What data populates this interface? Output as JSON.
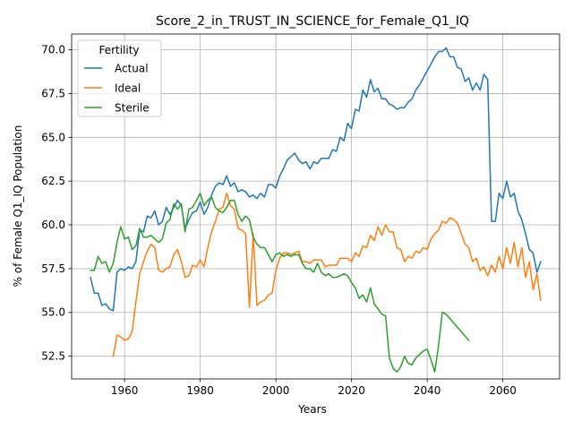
{
  "chart_data": {
    "type": "line",
    "title": "Score_2_in_TRUST_IN_SCIENCE_for_Female_Q1_IQ",
    "xlabel": "Years",
    "ylabel": "% of Female Q1_IQ Population",
    "xlim": [
      1946,
      2075
    ],
    "ylim": [
      51.2,
      70.9
    ],
    "xticks": [
      1960,
      1980,
      2000,
      2020,
      2040,
      2060
    ],
    "yticks": [
      52.5,
      55.0,
      57.5,
      60.0,
      62.5,
      65.0,
      67.5,
      70.0
    ],
    "xtick_labels": [
      "1960",
      "1980",
      "2000",
      "2020",
      "2040",
      "2060"
    ],
    "ytick_labels": [
      "52.5",
      "55.0",
      "57.5",
      "60.0",
      "62.5",
      "65.0",
      "67.5",
      "70.0"
    ],
    "grid": true,
    "legend": {
      "title": "Fertility",
      "placement": "top-left"
    },
    "series": [
      {
        "name": "Actual",
        "color": "#1f77b4",
        "x": [
          1951,
          1952,
          1953,
          1954,
          1955,
          1956,
          1957,
          1958,
          1959,
          1960,
          1961,
          1962,
          1963,
          1964,
          1965,
          1966,
          1967,
          1968,
          1969,
          1970,
          1971,
          1972,
          1973,
          1974,
          1975,
          1976,
          1977,
          1978,
          1979,
          1980,
          1981,
          1982,
          1983,
          1984,
          1985,
          1986,
          1987,
          1988,
          1989,
          1990,
          1991,
          1992,
          1993,
          1994,
          1995,
          1996,
          1997,
          1998,
          1999,
          2000,
          2001,
          2002,
          2003,
          2004,
          2005,
          2006,
          2007,
          2008,
          2009,
          2010,
          2011,
          2012,
          2013,
          2014,
          2015,
          2016,
          2017,
          2018,
          2019,
          2020,
          2021,
          2022,
          2023,
          2024,
          2025,
          2026,
          2027,
          2028,
          2029,
          2030,
          2031,
          2032,
          2033,
          2034,
          2035,
          2036,
          2037,
          2038,
          2039,
          2040,
          2041,
          2042,
          2043,
          2044,
          2045,
          2046,
          2047,
          2048,
          2049,
          2050,
          2051,
          2052,
          2053,
          2054,
          2055,
          2056,
          2057,
          2058,
          2059,
          2060,
          2061,
          2062,
          2063,
          2064,
          2065,
          2066,
          2067,
          2068,
          2069,
          2070
        ],
        "values": [
          57.0,
          56.1,
          56.1,
          55.4,
          55.5,
          55.2,
          55.1,
          57.3,
          57.5,
          57.4,
          57.6,
          57.5,
          57.9,
          59.7,
          59.6,
          60.5,
          60.4,
          60.8,
          60.0,
          60.2,
          61.0,
          60.6,
          61.0,
          61.4,
          61.1,
          59.8,
          60.3,
          60.7,
          60.8,
          61.3,
          60.6,
          61.0,
          61.7,
          62.2,
          62.4,
          62.3,
          62.8,
          62.2,
          62.4,
          61.9,
          62.0,
          61.9,
          61.6,
          61.7,
          61.5,
          61.8,
          61.6,
          62.3,
          62.3,
          62.1,
          62.8,
          63.2,
          63.7,
          63.9,
          64.1,
          63.7,
          63.5,
          63.6,
          63.2,
          63.6,
          63.5,
          63.8,
          63.8,
          63.8,
          64.3,
          64.2,
          65.0,
          64.8,
          65.8,
          65.5,
          66.6,
          66.5,
          67.7,
          67.3,
          68.3,
          67.6,
          67.8,
          67.2,
          67.2,
          66.9,
          66.8,
          66.6,
          66.7,
          66.7,
          67.0,
          67.2,
          67.7,
          68.0,
          68.4,
          68.8,
          69.2,
          69.6,
          69.9,
          69.9,
          70.1,
          69.6,
          69.6,
          69.0,
          68.9,
          68.2,
          68.4,
          67.7,
          68.1,
          67.7,
          68.6,
          68.3,
          60.2,
          60.2,
          61.8,
          61.5,
          62.5,
          61.6,
          61.8,
          60.8,
          60.3,
          59.5,
          58.6,
          58.4,
          57.3,
          57.9
        ]
      },
      {
        "name": "Ideal",
        "color": "#ff7f0e",
        "x": [
          1957,
          1958,
          1959,
          1960,
          1961,
          1962,
          1963,
          1964,
          1965,
          1966,
          1967,
          1968,
          1969,
          1970,
          1971,
          1972,
          1973,
          1974,
          1975,
          1976,
          1977,
          1978,
          1979,
          1980,
          1981,
          1982,
          1983,
          1984,
          1985,
          1986,
          1987,
          1988,
          1989,
          1990,
          1991,
          1992,
          1993,
          1994,
          1995,
          1996,
          1997,
          1998,
          1999,
          2000,
          2001,
          2002,
          2003,
          2004,
          2005,
          2006,
          2007,
          2008,
          2009,
          2010,
          2011,
          2012,
          2013,
          2014,
          2015,
          2016,
          2017,
          2018,
          2019,
          2020,
          2021,
          2022,
          2023,
          2024,
          2025,
          2026,
          2027,
          2028,
          2029,
          2030,
          2031,
          2032,
          2033,
          2034,
          2035,
          2036,
          2037,
          2038,
          2039,
          2040,
          2041,
          2042,
          2043,
          2044,
          2045,
          2046,
          2047,
          2048,
          2049,
          2050,
          2051,
          2052,
          2053,
          2054,
          2055,
          2056,
          2057,
          2058,
          2059,
          2060,
          2061,
          2062,
          2063,
          2064,
          2065,
          2066,
          2067,
          2068,
          2069,
          2070
        ],
        "values": [
          52.5,
          53.7,
          53.6,
          53.4,
          53.5,
          53.9,
          55.6,
          57.2,
          57.9,
          58.5,
          58.9,
          58.7,
          57.4,
          57.3,
          57.5,
          57.6,
          58.3,
          58.6,
          57.9,
          57.0,
          57.1,
          57.7,
          57.6,
          58.0,
          57.6,
          58.7,
          59.6,
          60.2,
          60.9,
          61.0,
          61.8,
          61.1,
          60.9,
          59.8,
          59.7,
          59.5,
          55.3,
          59.5,
          55.4,
          55.6,
          55.7,
          56.0,
          56.1,
          57.4,
          58.1,
          58.4,
          58.4,
          58.3,
          58.4,
          58.5,
          57.9,
          57.9,
          57.8,
          58.0,
          58.0,
          58.0,
          57.6,
          57.7,
          57.7,
          57.7,
          58.1,
          58.1,
          58.1,
          57.9,
          58.4,
          58.2,
          58.8,
          58.7,
          59.4,
          59.1,
          59.9,
          59.4,
          60.0,
          59.6,
          59.6,
          58.7,
          58.6,
          57.9,
          58.2,
          58.1,
          58.5,
          58.4,
          58.7,
          58.6,
          59.2,
          59.5,
          59.7,
          60.2,
          60.1,
          60.4,
          60.3,
          60.1,
          59.5,
          58.9,
          58.7,
          57.9,
          58.1,
          57.4,
          57.6,
          57.1,
          57.7,
          57.3,
          58.2,
          57.5,
          58.7,
          57.8,
          59.0,
          57.6,
          58.7,
          57.0,
          57.9,
          56.3,
          57.2,
          55.7
        ]
      },
      {
        "name": "Sterile",
        "color": "#2ca02c",
        "x": [
          1951,
          1952,
          1953,
          1954,
          1955,
          1956,
          1957,
          1958,
          1959,
          1960,
          1961,
          1962,
          1963,
          1964,
          1965,
          1966,
          1967,
          1968,
          1969,
          1970,
          1971,
          1972,
          1973,
          1974,
          1975,
          1976,
          1977,
          1978,
          1979,
          1980,
          1981,
          1982,
          1983,
          1984,
          1985,
          1986,
          1987,
          1988,
          1989,
          1990,
          1991,
          1992,
          1993,
          1994,
          1995,
          1996,
          1997,
          1998,
          1999,
          2000,
          2001,
          2002,
          2003,
          2004,
          2005,
          2006,
          2007,
          2008,
          2009,
          2010,
          2011,
          2012,
          2013,
          2014,
          2015,
          2016,
          2017,
          2018,
          2019,
          2020,
          2021,
          2022,
          2023,
          2024,
          2025,
          2026,
          2027,
          2028,
          2029,
          2030,
          2031,
          2032,
          2033,
          2034,
          2035,
          2036,
          2037,
          2038,
          2039,
          2040,
          2041,
          2042,
          2043,
          2044,
          2045,
          2051
        ],
        "values": [
          57.4,
          57.4,
          58.2,
          57.8,
          57.9,
          57.3,
          57.8,
          59.0,
          59.9,
          59.2,
          59.3,
          58.6,
          58.8,
          59.8,
          59.3,
          59.3,
          59.4,
          59.2,
          59.0,
          59.2,
          60.1,
          60.3,
          61.2,
          60.9,
          61.2,
          59.6,
          60.9,
          61.0,
          61.4,
          61.8,
          61.1,
          61.4,
          61.6,
          61.0,
          60.8,
          60.7,
          61.0,
          61.4,
          61.4,
          60.6,
          60.2,
          60.5,
          60.3,
          59.3,
          58.9,
          58.7,
          58.7,
          58.3,
          57.9,
          58.3,
          58.4,
          58.2,
          58.3,
          58.2,
          58.3,
          58.3,
          57.8,
          57.5,
          57.5,
          57.3,
          57.8,
          57.3,
          57.1,
          57.2,
          57.0,
          57.0,
          57.1,
          57.2,
          57.1,
          56.7,
          56.4,
          55.8,
          56.0,
          55.6,
          56.4,
          55.5,
          55.2,
          54.9,
          54.8,
          52.4,
          51.8,
          51.6,
          51.9,
          52.5,
          52.1,
          52.0,
          52.4,
          52.6,
          52.8,
          52.9,
          52.3,
          51.6,
          53.1,
          55.0,
          54.9,
          53.4
        ]
      }
    ]
  }
}
